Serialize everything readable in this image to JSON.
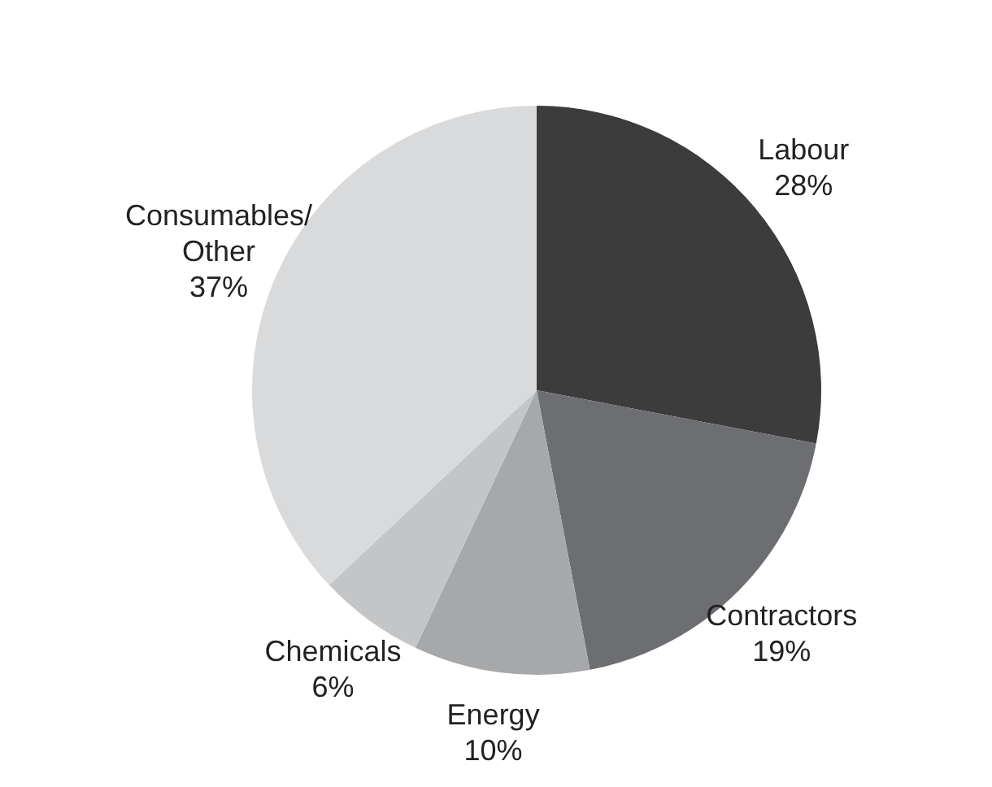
{
  "chart_data": {
    "type": "pie",
    "categories": [
      "Labour",
      "Contractors",
      "Energy",
      "Chemicals",
      "Consumables/ Other"
    ],
    "values": [
      28,
      19,
      10,
      6,
      37
    ],
    "value_labels": [
      "28%",
      "19%",
      "10%",
      "6%",
      "37%"
    ],
    "colors": [
      "#3c3c3c",
      "#6d6e71",
      "#a7a8aa",
      "#c4c5c6",
      "#d9dadb"
    ],
    "legend": false
  }
}
